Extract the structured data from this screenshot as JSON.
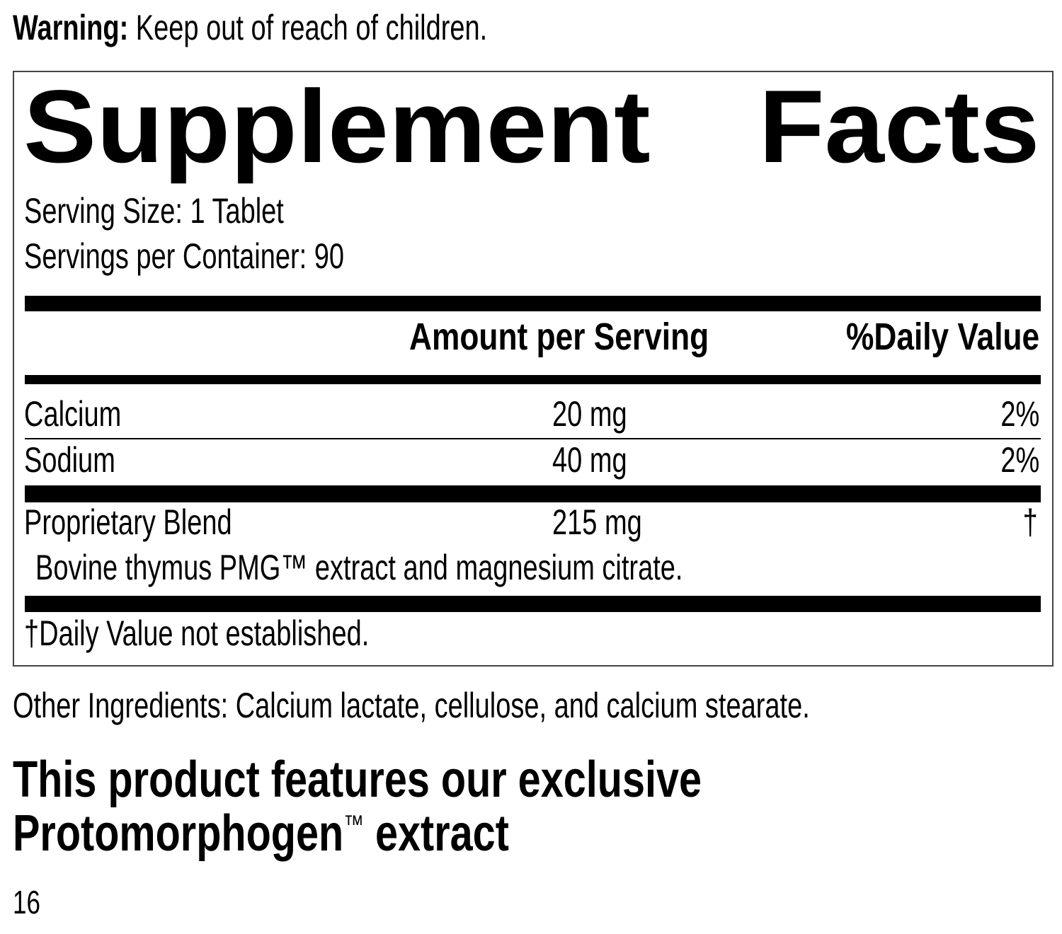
{
  "warning": {
    "label": "Warning:",
    "text": " Keep out of reach of children."
  },
  "facts": {
    "title_left": "Supplement",
    "title_right": "Facts",
    "serving_size": "Serving Size: 1 Tablet",
    "servings_per_container": "Servings per Container: 90",
    "header": {
      "amount": "Amount per Serving",
      "daily_value": "%Daily Value"
    },
    "rows": [
      {
        "name": "Calcium",
        "amount": "20 mg",
        "dv": "2%"
      },
      {
        "name": "Sodium",
        "amount": "40 mg",
        "dv": "2%"
      },
      {
        "name": "Proprietary Blend",
        "amount": "215 mg",
        "dv": "†"
      }
    ],
    "blend_ingredients": "Bovine thymus PMG™ extract and magnesium citrate.",
    "footnote": "†Daily Value not established."
  },
  "other_ingredients": "Other Ingredients: Calcium lactate, cellulose, and calcium stearate.",
  "headline": {
    "line1": "This product features our exclusive",
    "line2": "Protomorphogen",
    "tm": "™",
    "line2_end": " extract"
  },
  "page_number": "16"
}
